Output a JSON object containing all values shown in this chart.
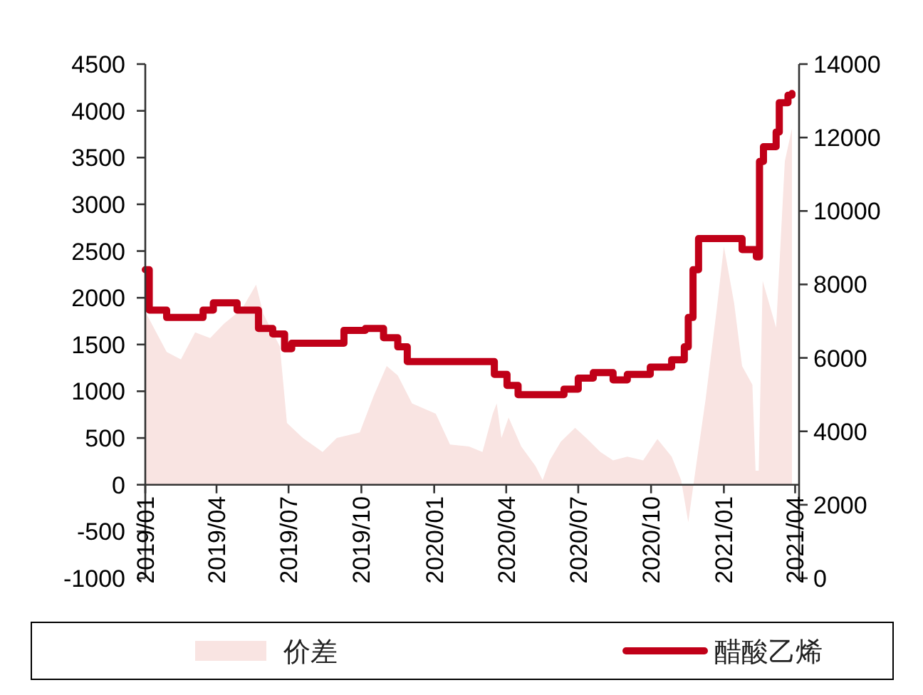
{
  "chart_data": {
    "type": "area",
    "series": [
      {
        "name": "价差",
        "color": "#f9e4e2",
        "x": [
          "2019-01-01",
          "2019-01-28",
          "2019-02-15",
          "2019-03-05",
          "2019-03-24",
          "2019-04-10",
          "2019-05-03",
          "2019-05-21",
          "2019-05-30",
          "2019-06-20",
          "2019-06-29",
          "2019-07-19",
          "2019-08-13",
          "2019-08-31",
          "2019-09-29",
          "2019-10-17",
          "2019-11-02",
          "2019-11-16",
          "2019-12-04",
          "2020-01-03",
          "2020-01-21",
          "2020-02-14",
          "2020-03-02",
          "2020-03-15",
          "2020-03-20",
          "2020-03-26",
          "2020-04-04",
          "2020-04-20",
          "2020-05-08",
          "2020-05-17",
          "2020-05-26",
          "2020-06-09",
          "2020-06-27",
          "2020-07-11",
          "2020-07-29",
          "2020-08-14",
          "2020-09-01",
          "2020-09-21",
          "2020-10-09",
          "2020-10-27",
          "2020-11-08",
          "2020-11-17",
          "2020-11-26",
          "2020-12-09",
          "2020-12-23",
          "2021-01-01",
          "2021-01-14",
          "2021-01-24",
          "2021-02-06",
          "2021-02-10",
          "2021-02-14",
          "2021-02-19",
          "2021-03-08",
          "2021-03-19",
          "2021-03-28"
        ],
        "values": [
          1850,
          1420,
          1340,
          1630,
          1570,
          1720,
          1880,
          2140,
          1830,
          1480,
          660,
          500,
          350,
          500,
          560,
          960,
          1270,
          1170,
          870,
          760,
          430,
          410,
          350,
          760,
          870,
          500,
          720,
          410,
          200,
          50,
          260,
          460,
          610,
          500,
          350,
          260,
          300,
          260,
          490,
          300,
          50,
          -400,
          150,
          920,
          1880,
          2550,
          1940,
          1270,
          1070,
          150,
          150,
          2180,
          1680,
          3460,
          3810
        ]
      },
      {
        "name": "醋酸乙烯",
        "type": "step",
        "axis": "y2",
        "color": "#c00018",
        "x": [
          "2019-01-01",
          "2019-01-06",
          "2019-01-28",
          "2019-03-15",
          "2019-03-28",
          "2019-04-27",
          "2019-05-24",
          "2019-06-11",
          "2019-06-26",
          "2019-07-05",
          "2019-09-09",
          "2019-10-06",
          "2019-10-29",
          "2019-11-16",
          "2019-11-28",
          "2020-03-17",
          "2020-04-02",
          "2020-04-16",
          "2020-06-13",
          "2020-07-01",
          "2020-07-20",
          "2020-08-14",
          "2020-09-01",
          "2020-09-30",
          "2020-10-27",
          "2020-11-12",
          "2020-11-17",
          "2020-11-23",
          "2020-11-30",
          "2021-01-24",
          "2021-02-11",
          "2021-02-15",
          "2021-02-20",
          "2021-03-08",
          "2021-03-12",
          "2021-03-23",
          "2021-03-28"
        ],
        "values": [
          8400,
          7300,
          7100,
          7300,
          7500,
          7300,
          6800,
          6650,
          6250,
          6400,
          6750,
          6800,
          6550,
          6300,
          5900,
          5550,
          5250,
          5000,
          5150,
          5450,
          5600,
          5400,
          5550,
          5750,
          5950,
          6300,
          7100,
          8400,
          9250,
          8950,
          8750,
          11350,
          11750,
          12150,
          12950,
          13150,
          13200
        ]
      }
    ],
    "xlim": [
      "2019-01-01",
      "2021-04-06"
    ],
    "xticks": [
      {
        "value": "2019-01-01",
        "label": "2019/01"
      },
      {
        "value": "2019-04-01",
        "label": "2019/04"
      },
      {
        "value": "2019-07-01",
        "label": "2019/07"
      },
      {
        "value": "2019-10-01",
        "label": "2019/10"
      },
      {
        "value": "2020-01-01",
        "label": "2020/01"
      },
      {
        "value": "2020-04-01",
        "label": "2020/04"
      },
      {
        "value": "2020-07-01",
        "label": "2020/07"
      },
      {
        "value": "2020-10-01",
        "label": "2020/10"
      },
      {
        "value": "2021-01-01",
        "label": "2021/01"
      },
      {
        "value": "2021-04-01",
        "label": "2021/04"
      }
    ],
    "ylim": [
      -1000,
      4500
    ],
    "yticks": [
      -1000,
      -500,
      0,
      500,
      1000,
      1500,
      2000,
      2500,
      3000,
      3500,
      4000,
      4500
    ],
    "y2lim": [
      0,
      14000
    ],
    "y2ticks": [
      0,
      2000,
      4000,
      6000,
      8000,
      10000,
      12000,
      14000
    ],
    "legend": "bottom"
  }
}
